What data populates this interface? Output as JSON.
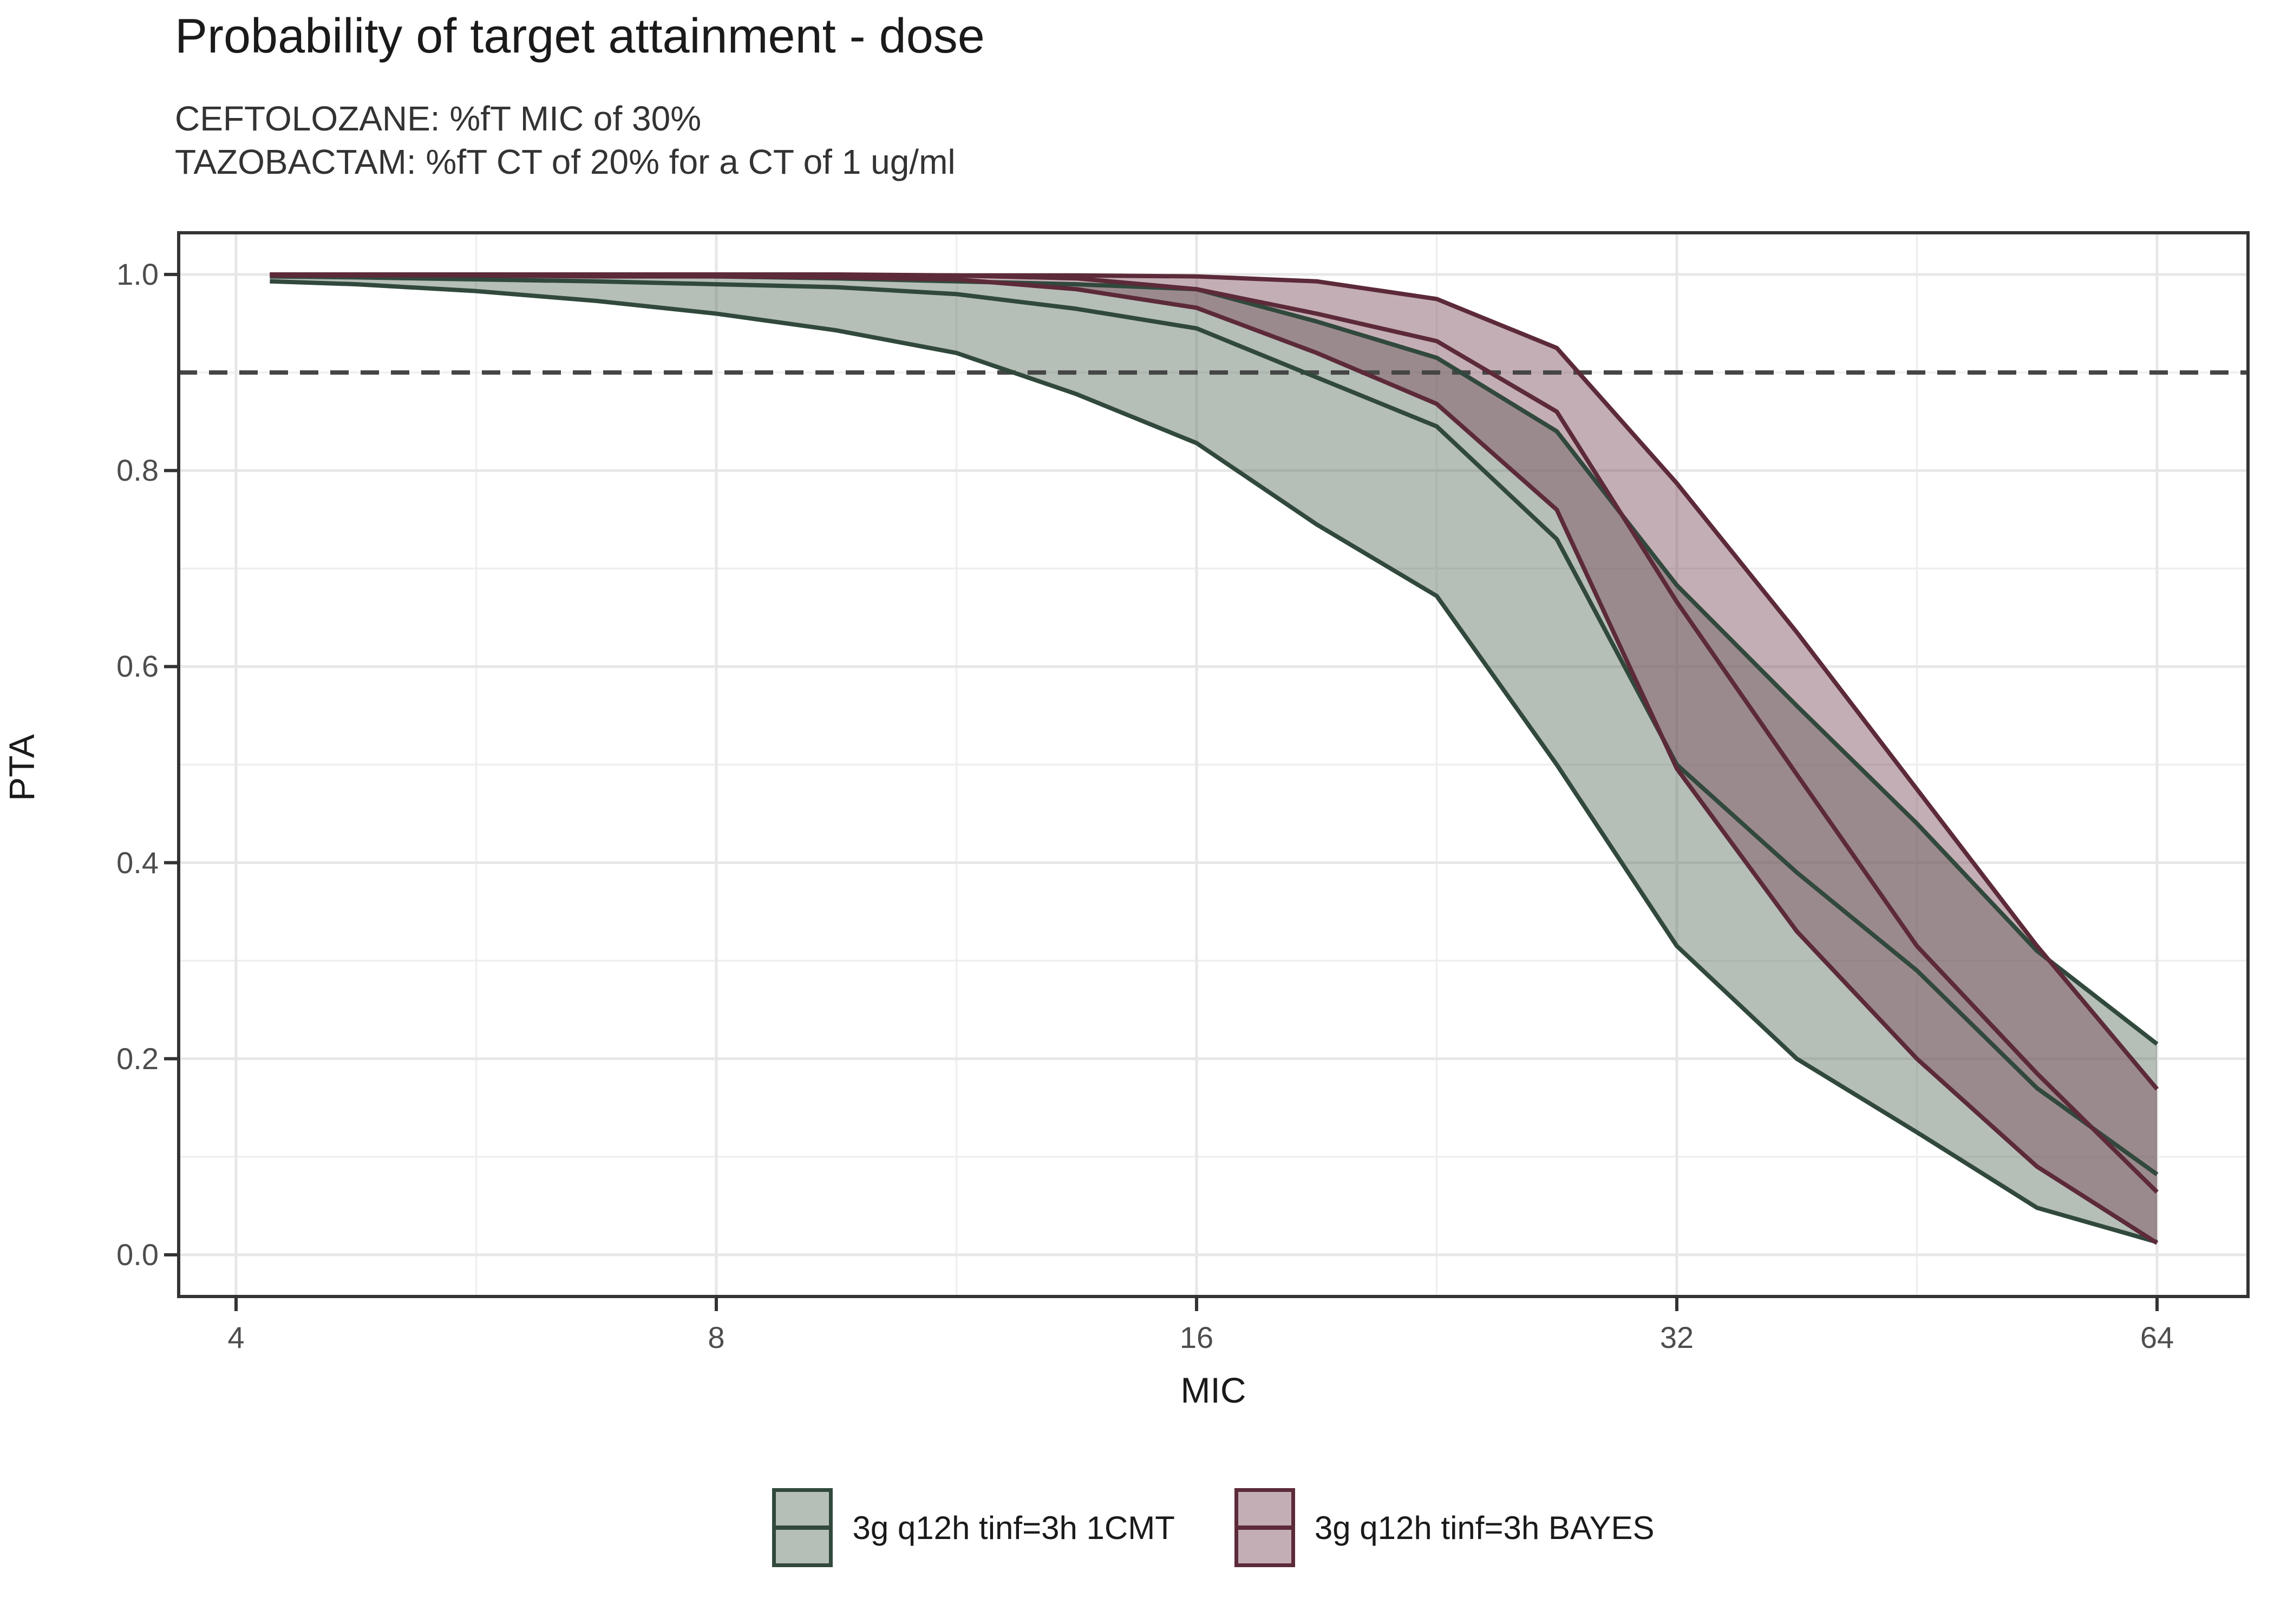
{
  "title": "Probability of target attainment - dose",
  "subtitle_line1": "CEFTOLOZANE: %fT MIC of 30%",
  "subtitle_line2": "TAZOBACTAM: %fT CT of 20% for a CT of 1 ug/ml",
  "axes": {
    "x_label": "MIC",
    "y_label": "PTA",
    "x_tick_labels": [
      "4",
      "8",
      "16",
      "32",
      "64"
    ],
    "y_tick_labels": [
      "0.0",
      "0.2",
      "0.4",
      "0.6",
      "0.8",
      "1.0"
    ]
  },
  "legend": {
    "items": [
      {
        "label": "3g q12h tinf=3h 1CMT",
        "line_color": "#31493c",
        "fill_color": "rgba(90,110,95,0.45)"
      },
      {
        "label": "3g q12h tinf=3h BAYES",
        "line_color": "#5c2a39",
        "fill_color": "rgba(125,75,90,0.45)"
      }
    ]
  },
  "chart_data": {
    "type": "area",
    "title": "Probability of target attainment - dose",
    "xlabel": "MIC",
    "ylabel": "PTA",
    "x_scale": "log2",
    "x_ticks": [
      4,
      8,
      16,
      32,
      64
    ],
    "x_minor_ticks": [
      5.657,
      11.314,
      22.627,
      45.255
    ],
    "xlim": [
      3.67,
      73.5
    ],
    "y_ticks": [
      0.0,
      0.2,
      0.4,
      0.6,
      0.8,
      1.0
    ],
    "y_minor_ticks": [
      0.1,
      0.3,
      0.5,
      0.7,
      0.9
    ],
    "ylim": [
      -0.043,
      1.042
    ],
    "grid": true,
    "legend_position": "bottom",
    "reference_line": {
      "type": "horizontal-dashed",
      "y": 0.9,
      "color": "#454545"
    },
    "mic": [
      4.2,
      4.76,
      5.66,
      6.73,
      8,
      9.51,
      11.31,
      13.45,
      16,
      19.03,
      22.63,
      26.91,
      32,
      38.05,
      45.25,
      53.82,
      64
    ],
    "series": [
      {
        "name": "3g q12h tinf=3h 1CMT",
        "line_color": "#31493c",
        "fill_color": "rgba(90,110,95,0.45)",
        "upper": [
          1,
          1,
          1,
          1,
          0.998,
          0.996,
          0.993,
          0.99,
          0.985,
          0.952,
          0.915,
          0.84,
          0.683,
          0.56,
          0.44,
          0.31,
          0.215
        ],
        "median": [
          0.998,
          0.997,
          0.995,
          0.993,
          0.99,
          0.987,
          0.98,
          0.965,
          0.945,
          0.895,
          0.845,
          0.73,
          0.5,
          0.39,
          0.29,
          0.17,
          0.082
        ],
        "lower": [
          0.993,
          0.99,
          0.983,
          0.973,
          0.96,
          0.943,
          0.92,
          0.878,
          0.828,
          0.745,
          0.672,
          0.5,
          0.315,
          0.2,
          0.125,
          0.048,
          0.013
        ]
      },
      {
        "name": "3g q12h tinf=3h BAYES",
        "line_color": "#5c2a39",
        "fill_color": "rgba(125,75,90,0.45)",
        "upper": [
          1,
          1,
          1,
          1,
          1,
          1,
          0.999,
          0.999,
          0.998,
          0.993,
          0.975,
          0.925,
          0.787,
          0.635,
          0.475,
          0.315,
          0.169
        ],
        "median": [
          1,
          1,
          1,
          1,
          0.999,
          0.999,
          0.999,
          0.996,
          0.985,
          0.96,
          0.932,
          0.86,
          0.666,
          0.49,
          0.315,
          0.185,
          0.064
        ],
        "lower": [
          0.999,
          0.999,
          0.999,
          0.998,
          0.998,
          0.997,
          0.995,
          0.985,
          0.966,
          0.92,
          0.868,
          0.76,
          0.496,
          0.33,
          0.2,
          0.09,
          0.012
        ]
      }
    ]
  }
}
